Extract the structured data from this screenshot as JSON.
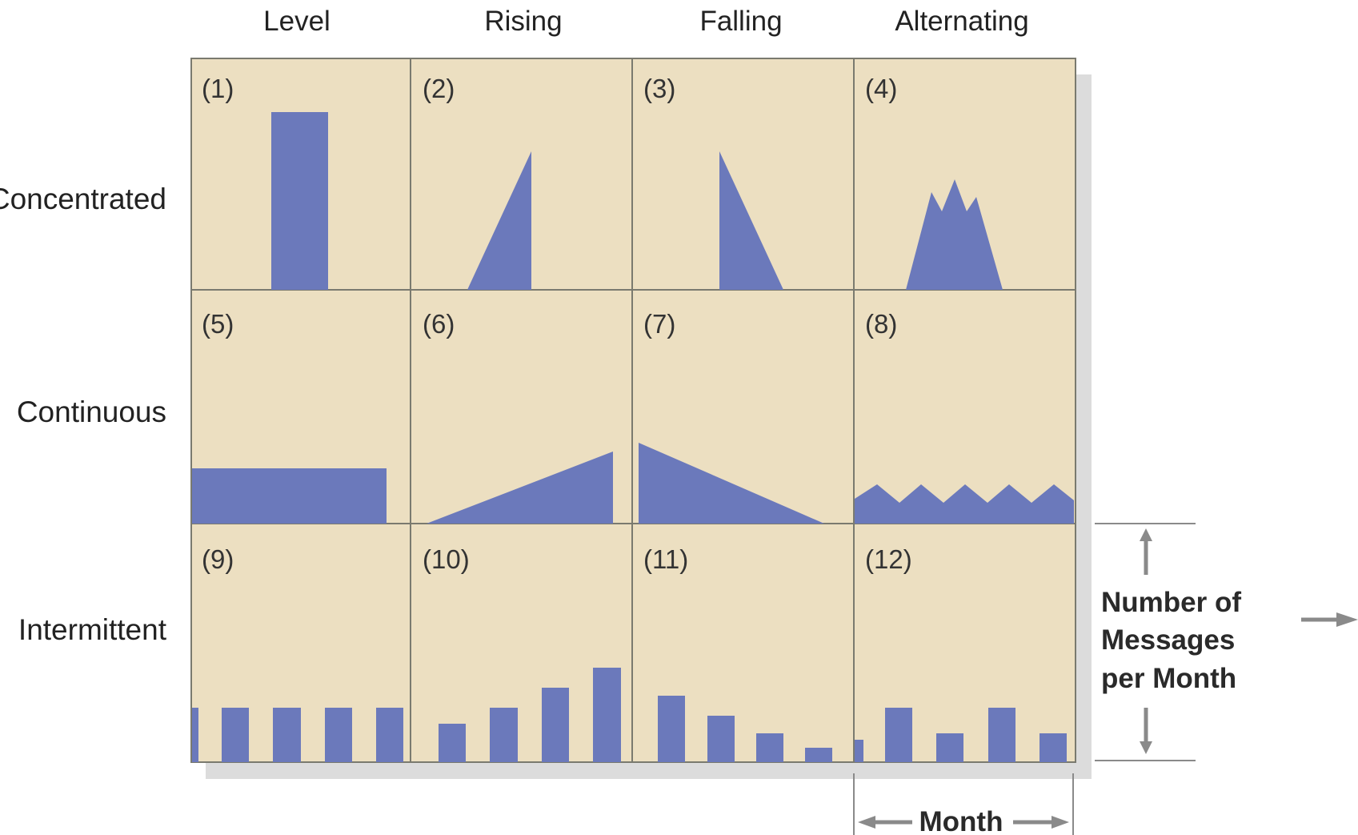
{
  "columns": [
    "Level",
    "Rising",
    "Falling",
    "Alternating"
  ],
  "rows": [
    "Concentrated",
    "Continuous",
    "Intermittent"
  ],
  "cells": [
    "(1)",
    "(2)",
    "(3)",
    "(4)",
    "(5)",
    "(6)",
    "(7)",
    "(8)",
    "(9)",
    "(10)",
    "(11)",
    "(12)"
  ],
  "y_axis": {
    "line1": "Number of",
    "line2": "Messages",
    "line3": "per Month"
  },
  "x_axis": "Month",
  "colors": {
    "cell_fill": "#ecdfc1",
    "cell_border": "#7a7a6f",
    "shape_fill": "#6b79bb",
    "shadow": "#dcdcdc",
    "arrow": "#8a8a8a"
  }
}
